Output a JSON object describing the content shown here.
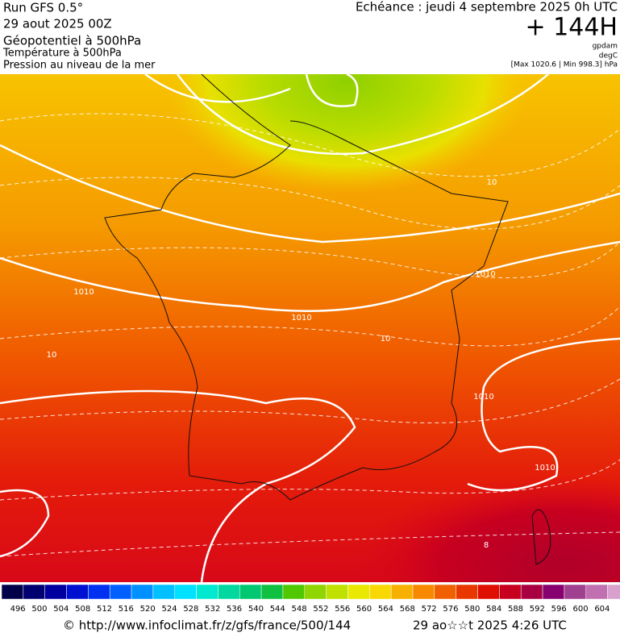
{
  "header": {
    "run": "Run GFS 0.5°",
    "date": "29 aout 2025 00Z",
    "field1": "Géopotentiel à 500hPa",
    "field2": "Température à 500hPa",
    "field3": "Pression au niveau de la mer",
    "echeance": "Echéance : jeudi 4 septembre 2025 0h UTC",
    "lead": "+ 144H",
    "unit1": "gpdam",
    "unit2": "degC",
    "extremes": "[Max 1020.6 | Min 998.3] hPa"
  },
  "map": {
    "isobar_labels": [
      "1010",
      "1010",
      "1010",
      "1010",
      "1010"
    ],
    "isotherm_labels": [
      "10",
      "10",
      "10",
      "8"
    ]
  },
  "scale": {
    "labels": [
      496,
      500,
      504,
      508,
      512,
      516,
      520,
      524,
      528,
      532,
      536,
      540,
      544,
      548,
      552,
      556,
      560,
      564,
      568,
      572,
      576,
      580,
      584,
      588,
      592,
      596,
      600,
      604
    ]
  },
  "footer": {
    "source": "© http://www.infoclimat.fr/z/gfs/france/500/144",
    "timestamp": "29 ao☆☆t 2025  4:26 UTC"
  }
}
